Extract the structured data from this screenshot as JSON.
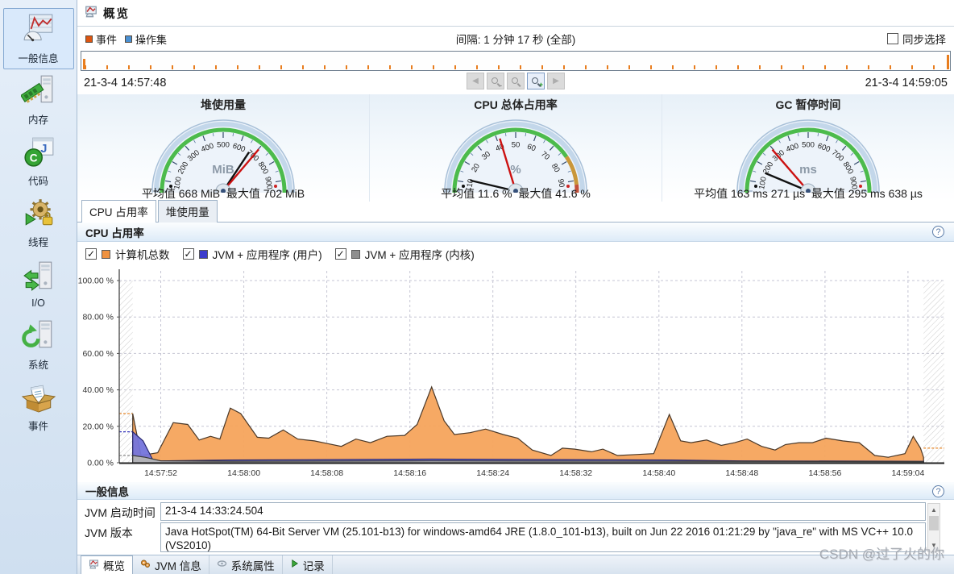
{
  "window": {
    "title": "概览",
    "watermark": "CSDN @过了火的你"
  },
  "sidebar": {
    "items": [
      {
        "label": "一般信息",
        "icon": "general-info-icon",
        "selected": true
      },
      {
        "label": "内存",
        "icon": "memory-icon",
        "selected": false
      },
      {
        "label": "代码",
        "icon": "code-icon",
        "selected": false
      },
      {
        "label": "线程",
        "icon": "threads-icon",
        "selected": false
      },
      {
        "label": "I/O",
        "icon": "io-icon",
        "selected": false
      },
      {
        "label": "系统",
        "icon": "system-icon",
        "selected": false
      },
      {
        "label": "事件",
        "icon": "events-icon",
        "selected": false
      }
    ]
  },
  "controls": {
    "events_label": "事件",
    "events_color": "#dd5511",
    "opset_label": "操作集",
    "opset_color": "#4a90d2",
    "interval_text": "间隔: 1 分钟 17 秒 (全部)",
    "sync_label": "同步选择",
    "sync_checked": false
  },
  "timeline": {
    "start": "21-3-4 14:57:48",
    "end": "21-3-4 14:59:05",
    "buttons": [
      "nav-back-icon",
      "zoom-out-selection-icon",
      "zoom-out-icon",
      "zoom-in-icon",
      "nav-forward-icon"
    ],
    "active_button_index": 3
  },
  "gauges": [
    {
      "title": "堆使用量",
      "unit": "MiB",
      "min": 0,
      "max": 1000,
      "major": 100,
      "needle_avg": 668,
      "needle_max": 702,
      "stats": "平均值 668 MiB  最大值 702 MiB",
      "zones": [
        {
          "from": 0,
          "to": 1000,
          "color": "#4cbb4c"
        }
      ]
    },
    {
      "title": "CPU 总体占用率",
      "unit": "%",
      "min": 0,
      "max": 100,
      "major": 10,
      "needle_avg": 11.6,
      "needle_max": 41.6,
      "stats": "平均值 11.6 %  最大值 41.6 %",
      "zones": [
        {
          "from": 0,
          "to": 78,
          "color": "#4cbb4c"
        },
        {
          "from": 78,
          "to": 92,
          "color": "#c9973a"
        },
        {
          "from": 92,
          "to": 100,
          "color": "#c4503a"
        }
      ]
    },
    {
      "title": "GC 暂停时间",
      "unit": "ms",
      "min": 0,
      "max": 1000,
      "major": 100,
      "needle_avg": 163.271,
      "needle_max": 295.638,
      "stats": "平均值 163 ms 271 µs  最大值 295 ms 638 µs",
      "zones": [
        {
          "from": 0,
          "to": 1000,
          "color": "#4cbb4c"
        }
      ]
    }
  ],
  "chart_tabs": [
    {
      "label": "CPU 占用率",
      "active": true
    },
    {
      "label": "堆使用量",
      "active": false
    }
  ],
  "cpu_section": {
    "title": "CPU 占用率",
    "legend": [
      {
        "label": "计算机总数",
        "color": "#ef9240",
        "checked": true
      },
      {
        "label": "JVM + 应用程序 (用户)",
        "color": "#3c3ccc",
        "checked": true
      },
      {
        "label": "JVM + 应用程序 (内核)",
        "color": "#8f8f8f",
        "checked": true
      }
    ]
  },
  "chart_data": {
    "type": "area",
    "title": "CPU 占用率",
    "ylim": [
      0,
      100
    ],
    "grid": true,
    "time_origin": "14:57:48",
    "t_max": 79.5,
    "y_ticks": [
      {
        "v": 0,
        "label": "0.00 %"
      },
      {
        "v": 20,
        "label": "20.00 %"
      },
      {
        "v": 40,
        "label": "40.00 %"
      },
      {
        "v": 60,
        "label": "60.00 %"
      },
      {
        "v": 80,
        "label": "80.00 %"
      },
      {
        "v": 100,
        "label": "100.00 %"
      }
    ],
    "x_ticks": [
      {
        "t": 4,
        "label": "14:57:52"
      },
      {
        "t": 12,
        "label": "14:58:00"
      },
      {
        "t": 20,
        "label": "14:58:08"
      },
      {
        "t": 28,
        "label": "14:58:16"
      },
      {
        "t": 36,
        "label": "14:58:24"
      },
      {
        "t": 44,
        "label": "14:58:32"
      },
      {
        "t": 52,
        "label": "14:58:40"
      },
      {
        "t": 60,
        "label": "14:58:48"
      },
      {
        "t": 68,
        "label": "14:58:56"
      },
      {
        "t": 76,
        "label": "14:59:04"
      }
    ],
    "hatch_left": [
      0,
      1.3
    ],
    "hatch_right": [
      77.5,
      79.5
    ],
    "boundary_lines": [
      {
        "t0": 0,
        "t1": 1.3,
        "v": 27,
        "color": "#e8882a"
      },
      {
        "t0": 0,
        "t1": 1.3,
        "v": 17,
        "color": "#3333bb"
      },
      {
        "t0": 0,
        "t1": 1.3,
        "v": 4,
        "color": "#8a8a8a"
      },
      {
        "t0": 77.5,
        "t1": 79.5,
        "v": 8,
        "color": "#e8882a"
      }
    ],
    "series": [
      {
        "name": "计算机总数",
        "color": "#f5a45c",
        "stroke": "#4a3828",
        "points": [
          [
            1.3,
            27
          ],
          [
            2.1,
            4
          ],
          [
            3.7,
            5.5
          ],
          [
            5.2,
            22
          ],
          [
            6.6,
            21
          ],
          [
            7.7,
            12.5
          ],
          [
            8.8,
            14.5
          ],
          [
            9.7,
            13
          ],
          [
            10.7,
            30
          ],
          [
            11.7,
            27
          ],
          [
            13.3,
            14
          ],
          [
            14.4,
            13.5
          ],
          [
            15.8,
            18
          ],
          [
            17.2,
            13
          ],
          [
            18.8,
            12
          ],
          [
            20.1,
            10.5
          ],
          [
            21.4,
            9
          ],
          [
            22.8,
            13
          ],
          [
            24.2,
            11
          ],
          [
            25.8,
            14.5
          ],
          [
            27.5,
            15
          ],
          [
            28.7,
            21
          ],
          [
            30.1,
            41.6
          ],
          [
            31.3,
            23
          ],
          [
            32.3,
            15.5
          ],
          [
            33.8,
            16.5
          ],
          [
            35.3,
            18.5
          ],
          [
            37,
            15.5
          ],
          [
            38.4,
            13.5
          ],
          [
            39.8,
            7
          ],
          [
            41.6,
            4
          ],
          [
            42.7,
            8
          ],
          [
            43.9,
            7.5
          ],
          [
            45.5,
            6
          ],
          [
            46.6,
            7.5
          ],
          [
            48,
            4
          ],
          [
            49.8,
            4.5
          ],
          [
            51.5,
            5
          ],
          [
            53,
            26.5
          ],
          [
            54.1,
            12
          ],
          [
            55.1,
            11
          ],
          [
            56.6,
            12.5
          ],
          [
            58,
            9.5
          ],
          [
            59.3,
            11
          ],
          [
            60.5,
            13
          ],
          [
            61.9,
            9
          ],
          [
            63.2,
            7
          ],
          [
            64.2,
            10
          ],
          [
            65.5,
            11
          ],
          [
            66.8,
            11
          ],
          [
            68.1,
            13.5
          ],
          [
            69.7,
            12
          ],
          [
            71.3,
            11
          ],
          [
            72.8,
            4
          ],
          [
            74.1,
            3
          ],
          [
            75.7,
            5
          ],
          [
            76.5,
            14.5
          ],
          [
            77.2,
            8
          ],
          [
            77.5,
            3
          ]
        ]
      },
      {
        "name": "JVM + 应用程序 (用户)",
        "color": "#7474db",
        "stroke": "#26266e",
        "points": [
          [
            1.3,
            17
          ],
          [
            2.3,
            12
          ],
          [
            3.2,
            2
          ],
          [
            4,
            1
          ],
          [
            10.7,
            1.5
          ],
          [
            30.1,
            2
          ],
          [
            53,
            1.5
          ],
          [
            60,
            1
          ],
          [
            77.5,
            0.8
          ]
        ]
      },
      {
        "name": "JVM + 应用程序 (内核)",
        "color": "#b5b5b5",
        "stroke": "#3a3a3a",
        "points": [
          [
            1.3,
            4
          ],
          [
            2.5,
            3
          ],
          [
            4,
            1
          ],
          [
            10.7,
            0.8
          ],
          [
            30.1,
            1
          ],
          [
            53,
            0.8
          ],
          [
            77.5,
            0.6
          ]
        ]
      }
    ]
  },
  "info_section": {
    "title": "一般信息",
    "rows": [
      {
        "label": "JVM 启动时间",
        "value": "21-3-4 14:33:24.504"
      },
      {
        "label": "JVM 版本",
        "value": "Java HotSpot(TM) 64-Bit Server VM (25.101-b13) for windows-amd64 JRE (1.8.0_101-b13), built on Jun 22 2016 01:21:29 by \"java_re\" with MS VC++ 10.0 (VS2010)"
      }
    ]
  },
  "bottom_tabs": [
    {
      "label": "概览",
      "icon": "overview-tab-icon",
      "active": true
    },
    {
      "label": "JVM 信息",
      "icon": "jvm-info-tab-icon",
      "active": false
    },
    {
      "label": "系统属性",
      "icon": "system-props-tab-icon",
      "active": false
    },
    {
      "label": "记录",
      "icon": "records-tab-icon",
      "active": false
    }
  ]
}
